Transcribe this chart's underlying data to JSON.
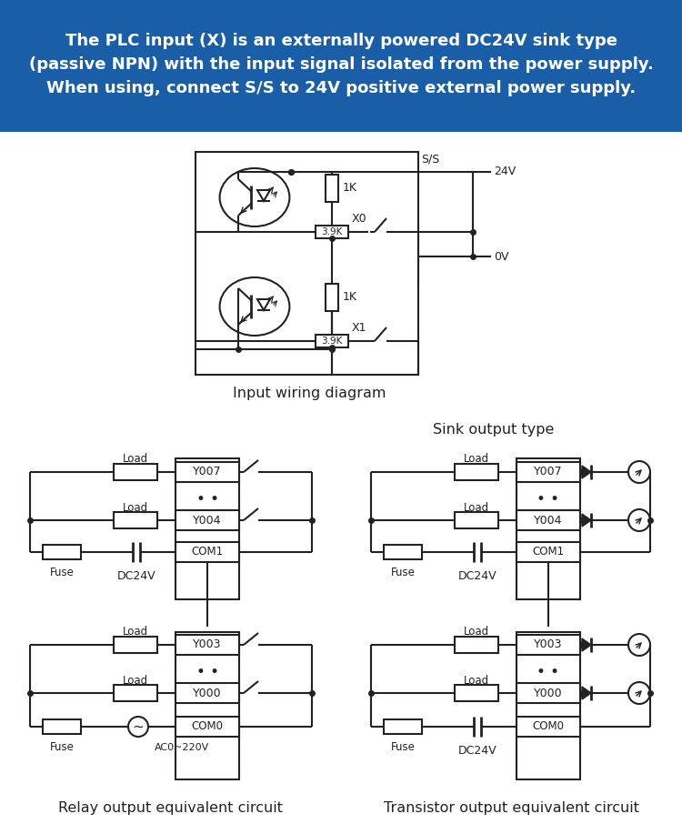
{
  "bg_header_color": "#1a5ea8",
  "bg_body_color": "#ffffff",
  "header_text_color": "#ffffff",
  "line_color": "#222222",
  "header_text_line1": "The PLC input (X) is an externally powered DC24V sink type",
  "header_text_line2": "(passive NPN) with the input signal isolated from the power supply.",
  "header_text_line3": "When using, connect S/S to 24V positive external power supply.",
  "input_diagram_label": "Input wiring diagram",
  "relay_label": "Relay output equivalent circuit",
  "transistor_label": "Transistor output equivalent circuit",
  "sink_label": "Sink output type",
  "header_fontsize": 13.0,
  "label_fontsize": 11.5,
  "diagram_fontsize": 9.0
}
